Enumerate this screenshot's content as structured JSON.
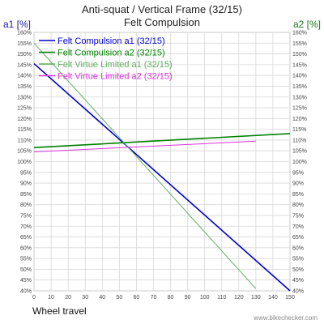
{
  "chart_data": {
    "type": "line",
    "title": "Anti-squat / Vertical Frame  (32/15)",
    "subtitle": "Felt Compulsion",
    "y1label": "a1 [%]",
    "y2label": "a2 [%]",
    "xlabel": "Wheel travel",
    "watermark": "www.bikechecker.com",
    "xlim": [
      0,
      150
    ],
    "ylim": [
      40,
      160
    ],
    "xticks": [
      "0",
      "10",
      "20",
      "30",
      "40",
      "50",
      "60",
      "70",
      "80",
      "90",
      "100",
      "110",
      "120",
      "130",
      "140",
      "150"
    ],
    "yticks": [
      "40%",
      "45%",
      "50%",
      "55%",
      "60%",
      "65%",
      "70%",
      "75%",
      "80%",
      "85%",
      "90%",
      "95%",
      "100%",
      "105%",
      "110%",
      "115%",
      "120%",
      "125%",
      "130%",
      "135%",
      "140%",
      "145%",
      "150%",
      "155%",
      "160%"
    ],
    "grid": true,
    "legend": "top-left",
    "series": [
      {
        "name": "Felt Compulsion a1 (32/15)",
        "color": "#0000cc",
        "axis": "a1",
        "x": [
          0,
          150
        ],
        "y": [
          145.5,
          40
        ]
      },
      {
        "name": "Felt Compulsion a2 (32/15)",
        "color": "#008000",
        "axis": "a2",
        "x": [
          0,
          150
        ],
        "y": [
          106.5,
          113
        ]
      },
      {
        "name": "Felt Virtue Limited a1 (32/15)",
        "color": "#60b060",
        "axis": "a1",
        "x": [
          0,
          130
        ],
        "y": [
          155,
          41
        ]
      },
      {
        "name": "Felt Virtue Limited a2 (32/15)",
        "color": "#dd33dd",
        "axis": "a2",
        "x": [
          0,
          130
        ],
        "y": [
          104.5,
          109.5
        ]
      }
    ]
  }
}
